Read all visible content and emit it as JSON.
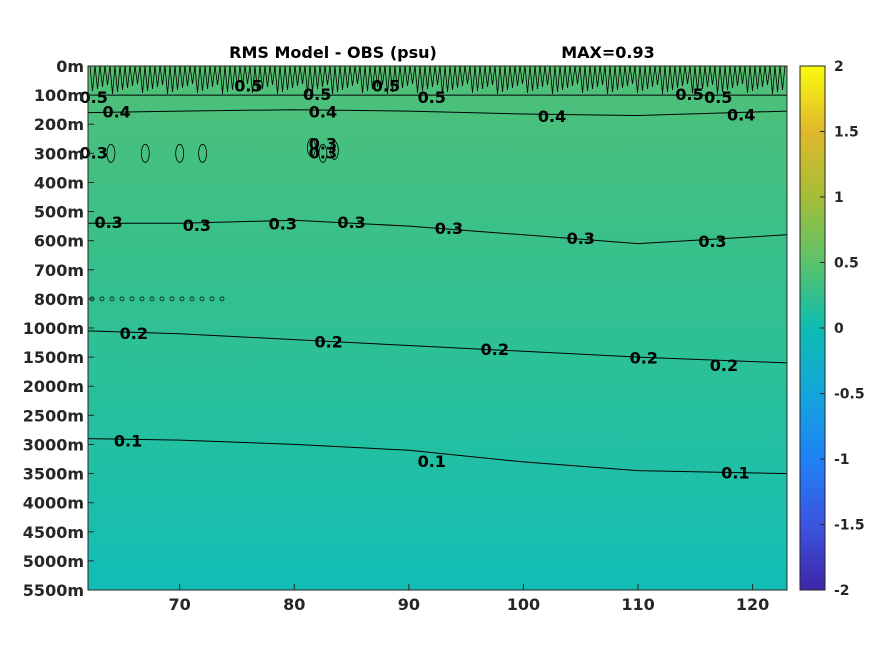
{
  "chart_data": {
    "type": "heatmap",
    "title": "RMS Model - OBS (psu)",
    "max_label": "MAX=0.93",
    "x_ticks": [
      70,
      80,
      90,
      100,
      110,
      120
    ],
    "x_range": [
      62,
      123
    ],
    "y_tick_labels": [
      "0m",
      "100m",
      "200m",
      "300m",
      "400m",
      "500m",
      "600m",
      "700m",
      "800m",
      "1000m",
      "1500m",
      "2000m",
      "2500m",
      "3000m",
      "3500m",
      "4000m",
      "4500m",
      "5000m",
      "5500m"
    ],
    "colorbar": {
      "min": -2,
      "max": 2,
      "ticks": [
        "2",
        "1.5",
        "1",
        "0.5",
        "0",
        "-0.5",
        "-1",
        "-1.5",
        "-2"
      ]
    },
    "contours": [
      {
        "level": 0.5,
        "label": "0.5",
        "line": [
          [
            62,
            1.0
          ],
          [
            70,
            1.0
          ],
          [
            80,
            1.0
          ],
          [
            90,
            1.0
          ],
          [
            100,
            1.0
          ],
          [
            110,
            1.0
          ],
          [
            123,
            1.0
          ]
        ],
        "labels": [
          [
            62.5,
            1.1
          ],
          [
            76,
            0.7
          ],
          [
            82,
            1.0
          ],
          [
            88,
            0.7
          ],
          [
            92,
            1.1
          ],
          [
            114.5,
            1.0
          ],
          [
            117,
            1.1
          ]
        ]
      },
      {
        "level": 0.4,
        "label": "0.4",
        "line": [
          [
            62,
            1.6
          ],
          [
            70,
            1.55
          ],
          [
            80,
            1.5
          ],
          [
            90,
            1.55
          ],
          [
            100,
            1.65
          ],
          [
            110,
            1.7
          ],
          [
            123,
            1.55
          ]
        ],
        "labels": [
          [
            64.5,
            1.6
          ],
          [
            82.5,
            1.6
          ],
          [
            102.5,
            1.75
          ],
          [
            119,
            1.7
          ]
        ]
      },
      {
        "level": 0.3,
        "label": "0.3",
        "line": [
          [
            62,
            5.4
          ],
          [
            70,
            5.4
          ],
          [
            80,
            5.3
          ],
          [
            90,
            5.5
          ],
          [
            100,
            5.8
          ],
          [
            110,
            6.1
          ],
          [
            123,
            5.8
          ]
        ],
        "labels": [
          [
            63.8,
            5.4
          ],
          [
            71.5,
            5.5
          ],
          [
            79,
            5.45
          ],
          [
            85,
            5.4
          ],
          [
            93.5,
            5.6
          ],
          [
            105,
            5.95
          ],
          [
            116.5,
            6.05
          ]
        ]
      },
      {
        "level": 0.2,
        "label": "0.2",
        "line": [
          [
            62,
            9.1
          ],
          [
            70,
            9.2
          ],
          [
            80,
            9.4
          ],
          [
            90,
            9.6
          ],
          [
            100,
            9.8
          ],
          [
            110,
            10.0
          ],
          [
            123,
            10.2
          ]
        ],
        "labels": [
          [
            66,
            9.2
          ],
          [
            83,
            9.5
          ],
          [
            97.5,
            9.75
          ],
          [
            110.5,
            10.05
          ],
          [
            117.5,
            10.3
          ]
        ]
      },
      {
        "level": 0.1,
        "label": "0.1",
        "line": [
          [
            62,
            12.8
          ],
          [
            70,
            12.85
          ],
          [
            80,
            13.0
          ],
          [
            90,
            13.2
          ],
          [
            100,
            13.6
          ],
          [
            110,
            13.9
          ],
          [
            123,
            14.0
          ]
        ],
        "labels": [
          [
            65.5,
            12.9
          ],
          [
            92,
            13.6
          ],
          [
            118.5,
            14.0
          ]
        ]
      },
      {
        "level": 0.3,
        "label": "0.3",
        "line": [],
        "labels": [
          [
            62.5,
            3.0
          ],
          [
            82.5,
            2.7
          ],
          [
            82.5,
            3.0
          ]
        ]
      }
    ]
  }
}
